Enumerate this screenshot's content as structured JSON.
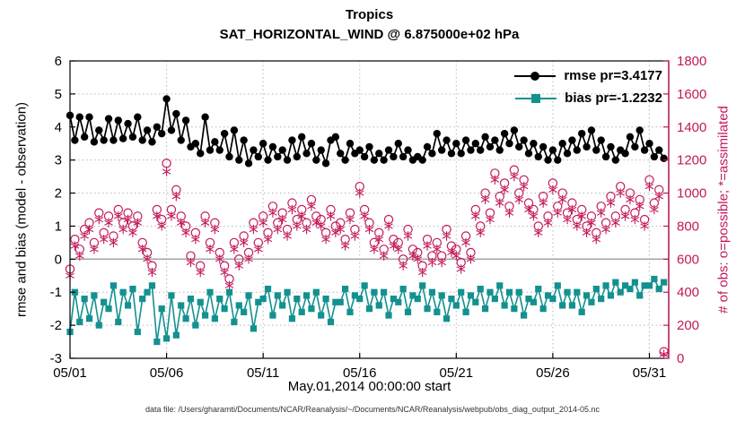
{
  "caption": "data file: /Users/gharamti/Documents/NCAR/Reanalysis/~/Documents/NCAR/Reanalysis/webpub/obs_diag_output_2014-05.nc",
  "chart_data": {
    "type": "line",
    "title": "Tropics",
    "subtitle": "SAT_HORIZONTAL_WIND @ 6.875000e+02 hPa",
    "xlabel": "May.01,2014 00:00:00 start",
    "ylabel_left": "rmse and bias (model - observation)",
    "ylabel_right": "# of obs: o=possible; *=assimilated",
    "ylim_left": [
      -3,
      6
    ],
    "yticks_left": [
      -3,
      -2,
      -1,
      0,
      1,
      2,
      3,
      4,
      5,
      6
    ],
    "ylim_right": [
      0,
      1800
    ],
    "yticks_right": [
      0,
      200,
      400,
      600,
      800,
      1000,
      1200,
      1400,
      1600,
      1800
    ],
    "xlim_days": [
      0,
      31
    ],
    "xticks": [
      {
        "day": 0,
        "label": "05/01"
      },
      {
        "day": 5,
        "label": "05/06"
      },
      {
        "day": 10,
        "label": "05/11"
      },
      {
        "day": 15,
        "label": "05/16"
      },
      {
        "day": 20,
        "label": "05/21"
      },
      {
        "day": 25,
        "label": "05/26"
      },
      {
        "day": 30,
        "label": "05/31"
      }
    ],
    "grid": true,
    "time_step_days": 0.25,
    "legend": [
      {
        "label": "rmse pr=3.4177",
        "color": "#000000",
        "marker": "circle"
      },
      {
        "label": "bias pr=-1.2232",
        "color": "#12918f",
        "marker": "square"
      }
    ],
    "colors": {
      "rmse": "#000000",
      "bias": "#12918f",
      "obs": "#c2185b",
      "grid": "#b9b9b9",
      "zero_line": "#a6a6a6",
      "axis": "#000000"
    },
    "series": [
      {
        "name": "rmse",
        "axis": "left",
        "marker": "circle",
        "values": [
          4.35,
          3.6,
          4.3,
          3.7,
          4.3,
          3.55,
          3.9,
          3.6,
          4.25,
          3.6,
          4.2,
          3.65,
          4.1,
          3.7,
          4.3,
          3.6,
          3.9,
          3.55,
          4.0,
          3.8,
          4.85,
          3.9,
          4.4,
          3.6,
          4.2,
          3.4,
          3.5,
          3.2,
          4.3,
          3.3,
          3.55,
          3.3,
          3.8,
          3.1,
          3.9,
          3.0,
          3.6,
          2.9,
          3.3,
          3.1,
          3.5,
          3.0,
          3.4,
          3.1,
          3.3,
          3.0,
          3.6,
          3.1,
          3.7,
          3.2,
          3.5,
          3.0,
          3.3,
          2.9,
          3.6,
          3.7,
          3.2,
          3.0,
          3.5,
          3.2,
          3.3,
          3.1,
          3.4,
          3.0,
          3.2,
          3.0,
          3.3,
          3.1,
          3.5,
          3.1,
          3.3,
          3.0,
          3.1,
          3.0,
          3.4,
          3.2,
          3.8,
          3.3,
          3.6,
          3.2,
          3.5,
          3.2,
          3.6,
          3.3,
          3.5,
          3.3,
          3.7,
          3.4,
          3.6,
          3.3,
          3.8,
          3.5,
          3.9,
          3.4,
          3.6,
          3.2,
          3.5,
          3.1,
          3.4,
          3.0,
          3.3,
          3.0,
          3.5,
          3.2,
          3.6,
          3.3,
          3.8,
          3.4,
          3.9,
          3.3,
          3.6,
          3.1,
          3.4,
          3.0,
          3.3,
          3.2,
          3.7,
          3.4,
          3.9,
          3.3,
          3.5,
          3.1,
          3.3,
          3.05
        ]
      },
      {
        "name": "bias",
        "axis": "left",
        "marker": "square",
        "values": [
          -2.2,
          -1.0,
          -1.9,
          -1.2,
          -1.8,
          -1.1,
          -2.0,
          -1.3,
          -1.5,
          -0.8,
          -1.9,
          -1.0,
          -1.4,
          -0.9,
          -2.2,
          -1.2,
          -1.0,
          -0.8,
          -2.5,
          -1.5,
          -2.4,
          -1.1,
          -2.3,
          -1.4,
          -1.8,
          -1.2,
          -2.0,
          -1.3,
          -1.7,
          -1.0,
          -1.8,
          -1.2,
          -1.5,
          -1.0,
          -1.9,
          -1.4,
          -1.6,
          -1.1,
          -2.1,
          -1.3,
          -1.2,
          -0.9,
          -1.7,
          -1.1,
          -1.4,
          -1.0,
          -1.8,
          -1.2,
          -1.6,
          -1.1,
          -1.5,
          -1.0,
          -1.7,
          -1.2,
          -1.9,
          -1.3,
          -1.3,
          -0.9,
          -1.6,
          -1.1,
          -1.2,
          -0.8,
          -1.5,
          -1.0,
          -1.4,
          -1.0,
          -1.7,
          -1.2,
          -1.3,
          -0.9,
          -1.6,
          -1.1,
          -1.2,
          -0.8,
          -1.5,
          -1.0,
          -1.6,
          -1.1,
          -1.8,
          -1.2,
          -1.4,
          -1.0,
          -1.6,
          -1.1,
          -1.3,
          -0.9,
          -1.5,
          -1.0,
          -1.2,
          -0.8,
          -1.4,
          -1.0,
          -1.5,
          -1.0,
          -1.7,
          -1.2,
          -1.3,
          -0.9,
          -1.5,
          -1.1,
          -1.2,
          -0.8,
          -1.4,
          -1.0,
          -1.4,
          -1.0,
          -1.6,
          -1.1,
          -1.3,
          -0.9,
          -1.2,
          -0.8,
          -1.1,
          -0.7,
          -1.0,
          -0.8,
          -0.9,
          -0.7,
          -1.1,
          -0.8,
          -0.8,
          -0.6,
          -0.9,
          -0.7
        ]
      },
      {
        "name": "possible",
        "axis": "right",
        "marker": "o",
        "values": [
          540,
          720,
          660,
          780,
          820,
          700,
          880,
          760,
          860,
          740,
          900,
          820,
          880,
          800,
          860,
          700,
          640,
          560,
          900,
          840,
          1180,
          900,
          1020,
          860,
          800,
          620,
          760,
          560,
          860,
          700,
          820,
          640,
          560,
          480,
          700,
          600,
          740,
          640,
          820,
          700,
          860,
          760,
          920,
          820,
          880,
          780,
          940,
          840,
          900,
          820,
          960,
          860,
          840,
          760,
          900,
          800,
          820,
          720,
          880,
          780,
          1040,
          900,
          820,
          700,
          760,
          660,
          840,
          720,
          700,
          600,
          780,
          660,
          640,
          560,
          720,
          620,
          700,
          620,
          780,
          680,
          660,
          580,
          740,
          640,
          900,
          800,
          1000,
          880,
          1120,
          980,
          1060,
          920,
          1140,
          1000,
          1080,
          940,
          900,
          800,
          980,
          860,
          1060,
          920,
          1000,
          880,
          940,
          840,
          900,
          800,
          860,
          760,
          920,
          820,
          980,
          860,
          1040,
          900,
          1000,
          880,
          960,
          840,
          1080,
          940,
          1020,
          40
        ]
      },
      {
        "name": "assimilated",
        "axis": "right",
        "marker": "*",
        "values": [
          500,
          680,
          620,
          740,
          780,
          660,
          840,
          720,
          820,
          700,
          860,
          780,
          840,
          760,
          820,
          660,
          600,
          520,
          860,
          800,
          1130,
          860,
          980,
          820,
          760,
          580,
          720,
          520,
          820,
          660,
          780,
          600,
          520,
          440,
          660,
          560,
          700,
          600,
          780,
          660,
          820,
          720,
          880,
          780,
          840,
          740,
          900,
          800,
          860,
          780,
          920,
          820,
          800,
          720,
          860,
          760,
          780,
          680,
          840,
          740,
          1000,
          860,
          780,
          660,
          720,
          620,
          800,
          680,
          660,
          560,
          740,
          620,
          600,
          520,
          680,
          580,
          660,
          580,
          740,
          640,
          620,
          540,
          700,
          600,
          860,
          760,
          960,
          840,
          1080,
          940,
          1020,
          880,
          1100,
          960,
          1040,
          900,
          860,
          760,
          940,
          820,
          1020,
          880,
          960,
          840,
          900,
          800,
          860,
          760,
          820,
          720,
          880,
          780,
          940,
          820,
          1000,
          860,
          960,
          840,
          920,
          800,
          1040,
          900,
          980,
          25
        ]
      }
    ]
  }
}
